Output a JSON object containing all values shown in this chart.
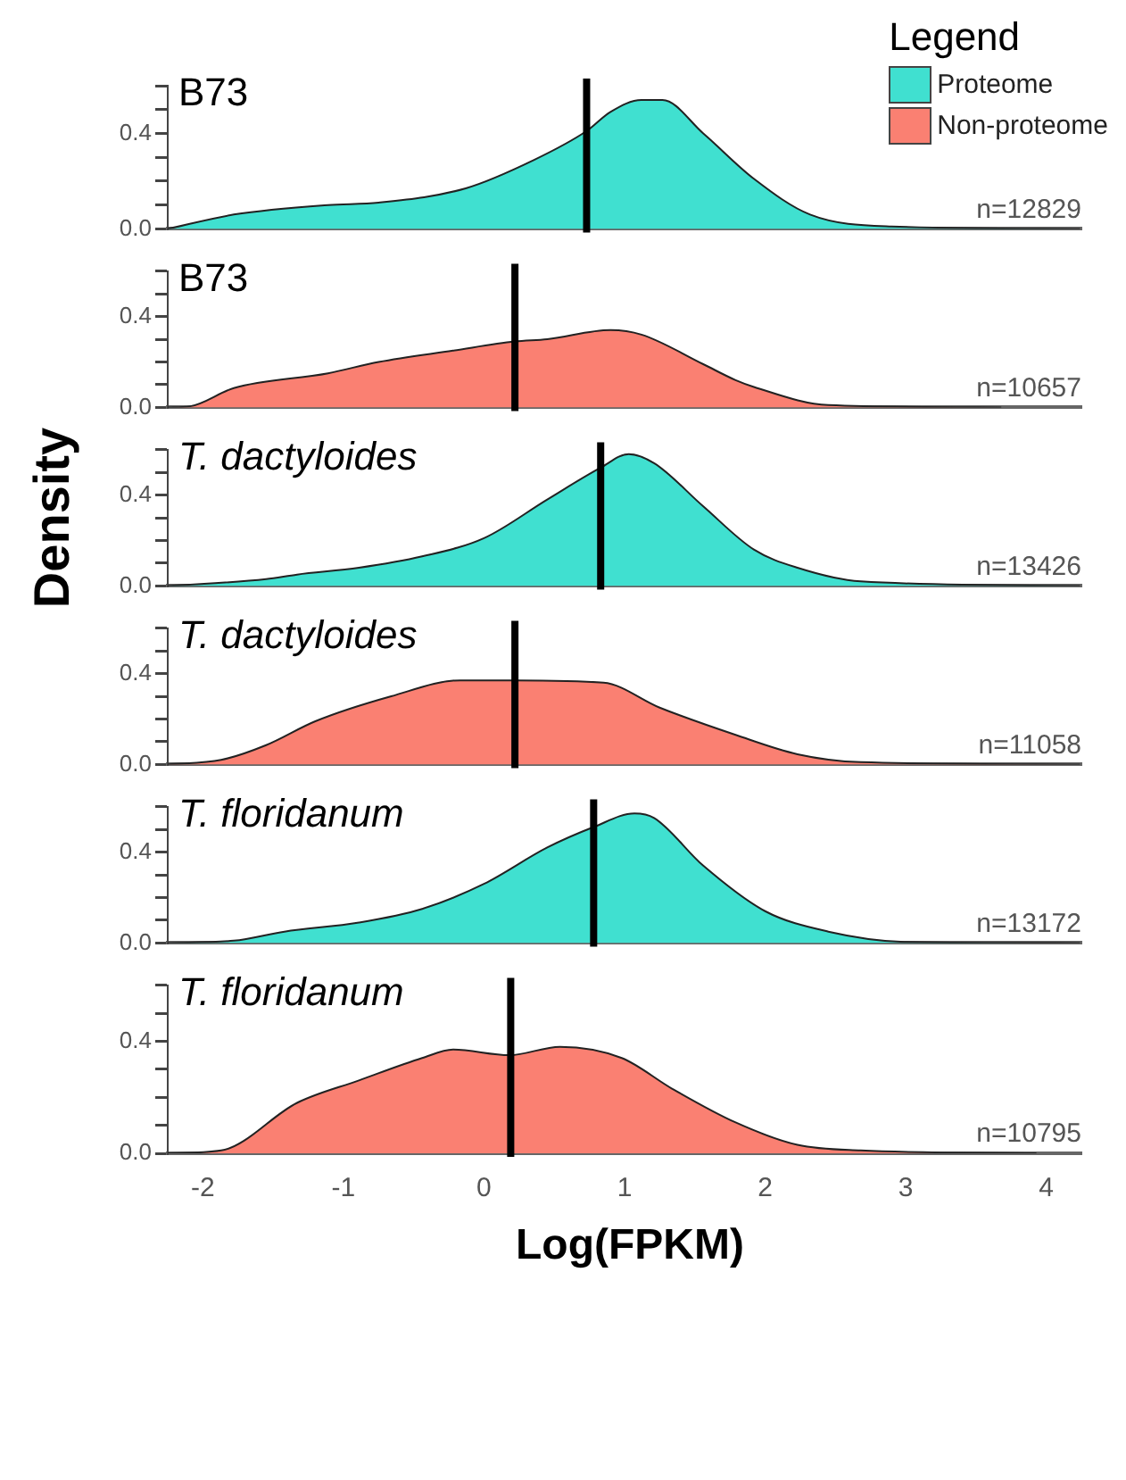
{
  "chart_data": [
    {
      "type": "area",
      "title": "B73",
      "legend": "top right",
      "legend_title": "Legend",
      "tick_labels": "y",
      "xlim": [
        -2.25,
        4.25
      ],
      "ylim": [
        0,
        0.6
      ],
      "yticks": [
        {
          "value": 0,
          "label": "0.0"
        },
        {
          "value": 0.1,
          "label": null
        },
        {
          "value": 0.2,
          "label": null
        },
        {
          "value": 0.3,
          "label": null
        },
        {
          "value": 0.4,
          "label": "0.4"
        },
        {
          "value": 0.5,
          "label": null
        },
        {
          "value": 0.6,
          "label": null
        }
      ],
      "x": [
        -2.25,
        -1.78,
        -1.11,
        -0.75,
        -0.13,
        0.36,
        0.73,
        0.9,
        1.12,
        1.27,
        1.56,
        1.92,
        2.32,
        2.9,
        4.24
      ],
      "series": [
        {
          "name": "Proteome",
          "color": "#40e0d0",
          "values": [
            0,
            0.06,
            0.1,
            0.11,
            0.17,
            0.29,
            0.41,
            0.49,
            0.54,
            0.54,
            0.4,
            0.21,
            0.06,
            0.01,
            0
          ]
        }
      ],
      "ref_lines": [
        {
          "axis": "x",
          "value": 0.73
        }
      ],
      "annotations": [
        "n=12829"
      ]
    },
    {
      "type": "area",
      "title": "B73",
      "tick_labels": "y",
      "xlim": [
        -2.25,
        4.25
      ],
      "ylim": [
        0,
        0.6
      ],
      "yticks": [
        {
          "value": 0,
          "label": "0.0"
        },
        {
          "value": 0.1,
          "label": null
        },
        {
          "value": 0.2,
          "label": null
        },
        {
          "value": 0.3,
          "label": null
        },
        {
          "value": 0.4,
          "label": "0.4"
        },
        {
          "value": 0.5,
          "label": null
        },
        {
          "value": 0.6,
          "label": null
        }
      ],
      "x": [
        -2.25,
        -2.09,
        -1.78,
        -1.11,
        -0.75,
        -0.22,
        0.22,
        0.45,
        0.9,
        1.12,
        1.56,
        1.79,
        1.92,
        2.45,
        3.68
      ],
      "series": [
        {
          "name": "Non-proteome",
          "color": "#fa8072",
          "values": [
            0,
            0.005,
            0.085,
            0.15,
            0.2,
            0.25,
            0.29,
            0.3,
            0.34,
            0.32,
            0.19,
            0.12,
            0.09,
            0.01,
            0
          ]
        }
      ],
      "ref_lines": [
        {
          "axis": "x",
          "value": 0.22
        }
      ],
      "annotations": [
        "n=10657"
      ]
    },
    {
      "type": "area",
      "title": "T. dactyloides",
      "ylabel": "Density",
      "tick_labels": "y",
      "xlim": [
        -2.25,
        4.25
      ],
      "ylim": [
        0,
        0.6
      ],
      "yticks": [
        {
          "value": 0,
          "label": "0.0"
        },
        {
          "value": 0.1,
          "label": null
        },
        {
          "value": 0.2,
          "label": null
        },
        {
          "value": 0.3,
          "label": null
        },
        {
          "value": 0.4,
          "label": "0.4"
        },
        {
          "value": 0.5,
          "label": null
        },
        {
          "value": 0.6,
          "label": null
        }
      ],
      "x": [
        -2.25,
        -1.55,
        -1.33,
        -0.89,
        -0.44,
        0,
        0.45,
        0.83,
        1.03,
        1.21,
        1.56,
        1.92,
        2.23,
        2.68,
        4.24
      ],
      "series": [
        {
          "color": "#40e0d0",
          "values": [
            0,
            0.03,
            0.05,
            0.08,
            0.13,
            0.21,
            0.38,
            0.52,
            0.58,
            0.54,
            0.35,
            0.16,
            0.08,
            0.02,
            0
          ]
        }
      ],
      "ref_lines": [
        {
          "axis": "x",
          "value": 0.83
        }
      ],
      "annotations": [
        "n=13426"
      ]
    },
    {
      "type": "area",
      "title": "T. dactyloides",
      "tick_labels": "y",
      "xlim": [
        -2.25,
        4.25
      ],
      "ylim": [
        0,
        0.6
      ],
      "yticks": [
        {
          "value": 0,
          "label": "0.0"
        },
        {
          "value": 0.1,
          "label": null
        },
        {
          "value": 0.2,
          "label": null
        },
        {
          "value": 0.3,
          "label": null
        },
        {
          "value": 0.4,
          "label": "0.4"
        },
        {
          "value": 0.5,
          "label": null
        },
        {
          "value": 0.6,
          "label": null
        }
      ],
      "x": [
        -2.25,
        -1.87,
        -1.55,
        -1.2,
        -0.66,
        -0.17,
        0.22,
        0.85,
        1.25,
        1.79,
        2.23,
        2.68,
        4.24
      ],
      "series": [
        {
          "color": "#fa8072",
          "values": [
            0,
            0.02,
            0.085,
            0.19,
            0.3,
            0.37,
            0.37,
            0.36,
            0.25,
            0.13,
            0.045,
            0.01,
            0
          ]
        }
      ],
      "ref_lines": [
        {
          "axis": "x",
          "value": 0.22
        }
      ],
      "annotations": [
        "n=11058"
      ]
    },
    {
      "type": "area",
      "title": "T. floridanum",
      "tick_labels": "y",
      "xlim": [
        -2.25,
        4.25
      ],
      "ylim": [
        0,
        0.6
      ],
      "yticks": [
        {
          "value": 0,
          "label": "0.0"
        },
        {
          "value": 0.1,
          "label": null
        },
        {
          "value": 0.2,
          "label": null
        },
        {
          "value": 0.3,
          "label": null
        },
        {
          "value": 0.4,
          "label": "0.4"
        },
        {
          "value": 0.5,
          "label": null
        },
        {
          "value": 0.6,
          "label": null
        }
      ],
      "x": [
        -2.25,
        -1.78,
        -1.42,
        -0.89,
        -0.44,
        0,
        0.45,
        0.78,
        1.07,
        1.21,
        1.56,
        2,
        2.45,
        2.99,
        4.24
      ],
      "series": [
        {
          "color": "#40e0d0",
          "values": [
            0,
            0.01,
            0.05,
            0.09,
            0.15,
            0.26,
            0.42,
            0.51,
            0.57,
            0.55,
            0.34,
            0.14,
            0.05,
            0.005,
            0
          ]
        }
      ],
      "ref_lines": [
        {
          "axis": "x",
          "value": 0.78
        }
      ],
      "annotations": [
        "n=13172"
      ]
    },
    {
      "type": "area",
      "title": "T. floridanum",
      "xlabel": "Log(FPKM)",
      "xlim": [
        -2.25,
        4.25
      ],
      "xticks": [
        -2,
        -1,
        0,
        1,
        2,
        3,
        4
      ],
      "ylim": [
        0,
        0.6
      ],
      "yticks": [
        {
          "value": 0,
          "label": "0.0"
        },
        {
          "value": 0.1,
          "label": null
        },
        {
          "value": 0.2,
          "label": null
        },
        {
          "value": 0.3,
          "label": null
        },
        {
          "value": 0.4,
          "label": "0.4"
        },
        {
          "value": 0.5,
          "label": null
        },
        {
          "value": 0.6,
          "label": null
        }
      ],
      "x": [
        -2.25,
        -1.87,
        -1.33,
        -0.89,
        -0.44,
        -0.22,
        0.18,
        0.54,
        0.98,
        1.34,
        1.79,
        2.23,
        2.68,
        3.93
      ],
      "series": [
        {
          "color": "#fa8072",
          "values": [
            0,
            0.01,
            0.18,
            0.26,
            0.34,
            0.37,
            0.35,
            0.38,
            0.34,
            0.23,
            0.11,
            0.03,
            0.01,
            0
          ]
        }
      ],
      "ref_lines": [
        {
          "axis": "x",
          "value": 0.19
        }
      ],
      "annotations": [
        "n=10795"
      ]
    }
  ]
}
